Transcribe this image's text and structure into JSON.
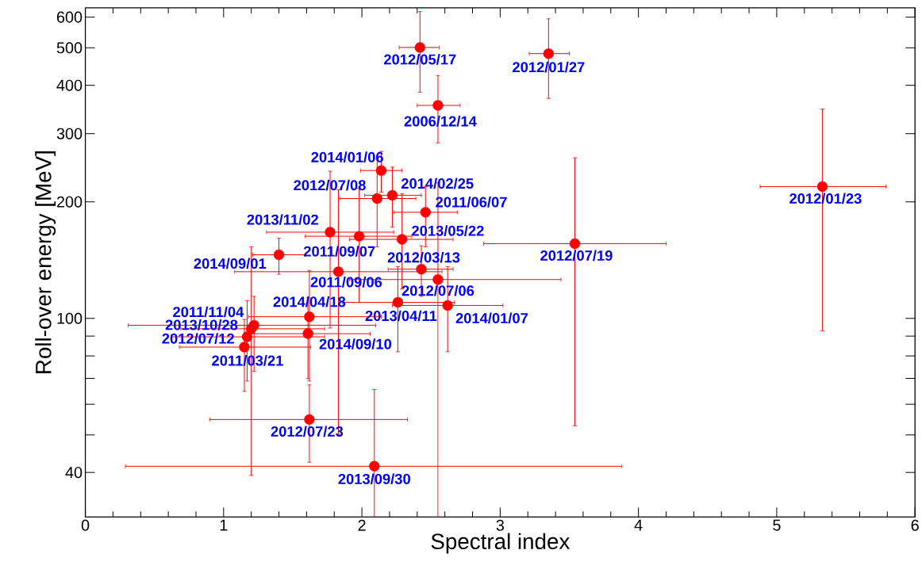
{
  "chart_data": {
    "type": "scatter",
    "xlabel": "Spectral index",
    "ylabel": "Roll-over energy [MeV]",
    "log": "y",
    "marker": "circle",
    "color": "#ff0000",
    "xlim": [
      0,
      6
    ],
    "xticks": [
      0,
      1,
      2,
      3,
      4,
      5,
      6
    ],
    "ylim": [
      30.7,
      634
    ],
    "yticks": [
      40,
      {
        "value": 50,
        "label": null
      },
      {
        "value": 60,
        "label": null
      },
      {
        "value": 70,
        "label": null
      },
      {
        "value": 80,
        "label": null
      },
      {
        "value": 90,
        "label": null
      },
      100,
      200,
      300,
      400,
      500,
      600
    ],
    "x": [
      2.42,
      3.35,
      2.55,
      2.14,
      2.11,
      2.22,
      2.46,
      1.77,
      1.98,
      2.29,
      1.4,
      1.83,
      2.43,
      2.55,
      1.62,
      2.26,
      2.62,
      1.22,
      1.2,
      1.17,
      1.61,
      1.15,
      1.62,
      2.09,
      3.54,
      5.33
    ],
    "values": [
      501,
      483,
      355,
      241,
      204,
      208,
      188,
      167,
      163,
      160,
      146,
      132,
      134,
      126,
      101,
      110,
      108,
      96,
      94,
      89.6,
      91.3,
      84.3,
      54.8,
      41.5,
      156,
      219
    ],
    "xerrors": [
      [
        2.27,
        2.56
      ],
      [
        3.21,
        3.5
      ],
      [
        2.4,
        2.71
      ],
      [
        1.99,
        2.29
      ],
      [
        1.84,
        2.39
      ],
      [
        2.02,
        2.43
      ],
      [
        2.23,
        2.69
      ],
      [
        1.31,
        2.23
      ],
      [
        1.59,
        2.36
      ],
      [
        1.91,
        2.66
      ],
      [
        1.21,
        1.59
      ],
      [
        1.08,
        2.58
      ],
      [
        2.19,
        2.66
      ],
      [
        1.91,
        3.44
      ],
      [
        1.18,
        2.14
      ],
      [
        1.86,
        2.67
      ],
      [
        2.22,
        3.02
      ],
      [
        0.31,
        2.1
      ],
      [
        0.69,
        1.73
      ],
      [
        0.62,
        1.73
      ],
      [
        1.15,
        2.06
      ],
      [
        0.68,
        1.63
      ],
      [
        0.9,
        2.33
      ],
      [
        0.29,
        3.88
      ],
      [
        2.88,
        4.2
      ],
      [
        4.88,
        5.79
      ]
    ],
    "errors": [
      [
        384,
        620
      ],
      [
        370,
        594
      ],
      [
        284,
        424
      ],
      [
        212,
        270
      ],
      [
        153,
        258
      ],
      [
        172,
        246
      ],
      [
        153,
        219
      ],
      [
        94.4,
        240
      ],
      [
        110,
        217
      ],
      [
        119,
        210
      ],
      [
        130,
        161
      ],
      [
        50.1,
        215
      ],
      [
        114,
        154
      ],
      [
        30.7,
        224
      ],
      [
        68.9,
        133
      ],
      [
        82,
        136
      ],
      [
        82,
        136
      ],
      [
        73,
        114
      ],
      [
        39.3,
        153
      ],
      [
        68.9,
        111
      ],
      [
        69.9,
        113
      ],
      [
        64.8,
        99.4
      ],
      [
        42.5,
        67.3
      ],
      [
        30.7,
        65.5
      ],
      [
        52.8,
        260
      ],
      [
        92.8,
        347
      ]
    ],
    "annotations": [
      {
        "text": "2012/05/17",
        "x": 2.42,
        "y": 501
      },
      {
        "text": "2012/01/27",
        "x": 3.35,
        "y": 483
      },
      {
        "text": "2006/12/14",
        "x": 2.55,
        "y": 355
      },
      {
        "text": "2014/01/06",
        "x": 2.14,
        "y": 241
      },
      {
        "text": "2012/07/08",
        "x": 2.11,
        "y": 204
      },
      {
        "text": "2014/02/25",
        "x": 2.22,
        "y": 208
      },
      {
        "text": "2011/06/07",
        "x": 2.46,
        "y": 188
      },
      {
        "text": "2013/11/02",
        "x": 1.77,
        "y": 167
      },
      {
        "text": "2011/09/07",
        "x": 1.98,
        "y": 163
      },
      {
        "text": "2013/05/22",
        "x": 2.29,
        "y": 160
      },
      {
        "text": "2014/09/01",
        "x": 1.4,
        "y": 146
      },
      {
        "text": "2011/09/06",
        "x": 1.83,
        "y": 132
      },
      {
        "text": "2012/03/13",
        "x": 2.43,
        "y": 134
      },
      {
        "text": "2012/07/06",
        "x": 2.55,
        "y": 126
      },
      {
        "text": "2014/04/18",
        "x": 1.62,
        "y": 101
      },
      {
        "text": "2013/04/11",
        "x": 2.26,
        "y": 110
      },
      {
        "text": "2014/01/07",
        "x": 2.62,
        "y": 108
      },
      {
        "text": "2011/11/04",
        "x": 1.22,
        "y": 96
      },
      {
        "text": "2013/10/28",
        "x": 1.2,
        "y": 94
      },
      {
        "text": "2012/07/12",
        "x": 1.17,
        "y": 89.6
      },
      {
        "text": "2014/09/10",
        "x": 1.61,
        "y": 91.3
      },
      {
        "text": "2011/03/21",
        "x": 1.15,
        "y": 84.3
      },
      {
        "text": "2012/07/23",
        "x": 1.62,
        "y": 54.8
      },
      {
        "text": "2013/09/30",
        "x": 2.09,
        "y": 41.5
      },
      {
        "text": "2012/07/19",
        "x": 3.54,
        "y": 156
      },
      {
        "text": "2012/01/23",
        "x": 5.33,
        "y": 219
      }
    ]
  }
}
